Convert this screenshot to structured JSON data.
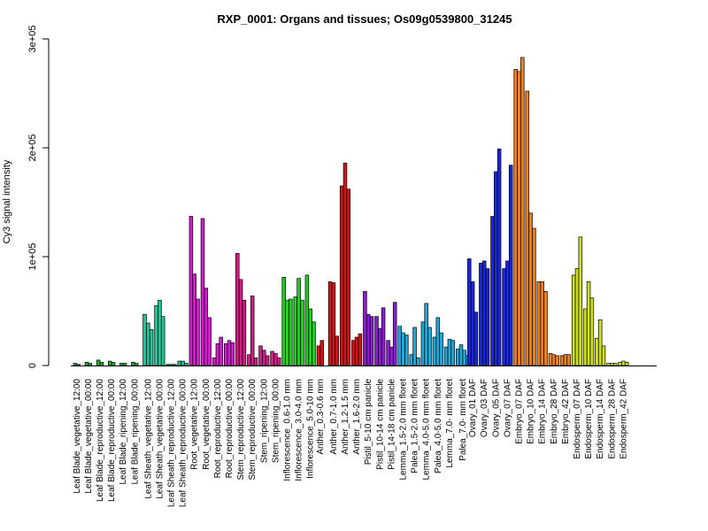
{
  "chart_data": {
    "type": "bar",
    "title": "RXP_0001: Organs and tissues; Os09g0539800_31245",
    "xlabel": "",
    "ylabel": "Cy3 signal intensity",
    "ylim": [
      0,
      300000
    ],
    "yticks": [
      0,
      100000,
      200000,
      300000
    ],
    "ytick_labels": [
      "0",
      "1e+05",
      "2e+05",
      "3e+05"
    ],
    "grid": false,
    "legend": "none",
    "x_labels": [
      "Leaf Blade_vegetative_12:00",
      "Leaf Blade_vegetative_00:00",
      "Leaf Blade_reproductive_12:00",
      "Leaf Blade_reproductive_00:00",
      "Leaf Blade_ripening_12:00",
      "Leaf Blade_ripening_00:00",
      "Leaf Sheath_vegetative_12:00",
      "Leaf Sheath_vegetative_00:00",
      "Leaf Sheath_reproductive_12:00",
      "Leaf Sheath_reproductive_00:00",
      "Root_vegetative_12:00",
      "Root_vegetative_00:00",
      "Root_reproductive_12:00",
      "Root_reproductive_00:00",
      "Stem_reproductive_12:00",
      "Stem_reproductive_00:00",
      "Stem_ripening_12:00",
      "Stem_ripening_00:00",
      "Inflorescence_0.6-1.0 mm",
      "Inflorescence_3.0-4.0 mm",
      "Inflorescence_5.0-10 mm",
      "Anther_0.3-0.6 mm",
      "Anther_0.7-1.0 mm",
      "Anther_1.2-1.5 mm",
      "Anther_1.6-2.0 mm",
      "Pistil_5-10 cm panicle",
      "Pistil_10-14 cm panicle",
      "Pistil_14-18 cm panicle",
      "Lemma_1.5-2.0 mm floret",
      "Palea_1.5-2.0 mm floret",
      "Lemma_4.0-5.0 mm floret",
      "Palea_4.0-5.0 mm floret",
      "Lemma_7.0- mm floret",
      "Palea_7.0- mm floret",
      "Ovary_01 DAF",
      "Ovary_03 DAF",
      "Ovary_05 DAF",
      "Ovary_07 DAF",
      "Embryo_07 DAF",
      "Embryo_10 DAF",
      "Embryo_14 DAF",
      "Embryo_28 DAF",
      "Embryo_42 DAF",
      "Endosperm_07 DAF",
      "Endosperm_10 DAF",
      "Endosperm_14 DAF",
      "Endosperm_28 DAF",
      "Endosperm_42 DAF"
    ],
    "groups": [
      {
        "color": "#1eb032",
        "values": [
          2000,
          1000
        ]
      },
      {
        "color": "#1eb032",
        "values": [
          3000,
          2000
        ]
      },
      {
        "color": "#1eb032",
        "values": [
          5000,
          3000
        ]
      },
      {
        "color": "#1eb032",
        "values": [
          4000,
          3000
        ]
      },
      {
        "color": "#1eb032",
        "values": [
          2000,
          2000
        ]
      },
      {
        "color": "#1eb032",
        "values": [
          3000,
          2000
        ]
      },
      {
        "color": "#20c496",
        "values": [
          47000,
          39000,
          33000
        ]
      },
      {
        "color": "#20c496",
        "values": [
          55000,
          60000,
          45000
        ]
      },
      {
        "color": "#20c496",
        "values": [
          1000,
          1000,
          1000
        ]
      },
      {
        "color": "#20c496",
        "values": [
          4000,
          4000,
          2000
        ]
      },
      {
        "color": "#d11fcf",
        "values": [
          137000,
          84000,
          61000
        ]
      },
      {
        "color": "#d11fcf",
        "values": [
          135000,
          71000,
          44000
        ]
      },
      {
        "color": "#d11fcf",
        "values": [
          7000,
          20000,
          26000
        ]
      },
      {
        "color": "#d11fcf",
        "values": [
          20000,
          23000,
          21000
        ]
      },
      {
        "color": "#cf1f86",
        "values": [
          103000,
          79000,
          60000
        ]
      },
      {
        "color": "#cf1f86",
        "values": [
          10000,
          64000,
          7000
        ]
      },
      {
        "color": "#cf1f86",
        "values": [
          18000,
          14000,
          9000
        ]
      },
      {
        "color": "#cf1f86",
        "values": [
          13000,
          11000,
          7000
        ]
      },
      {
        "color": "#20d020",
        "values": [
          81000,
          60000,
          61000
        ]
      },
      {
        "color": "#20d020",
        "values": [
          63000,
          80000,
          60000
        ]
      },
      {
        "color": "#20d020",
        "values": [
          83000,
          52000,
          40000
        ]
      },
      {
        "color": "#d01818",
        "values": [
          18000,
          23000
        ]
      },
      {
        "color": "#d01818",
        "values": [
          77000,
          76000,
          27000
        ]
      },
      {
        "color": "#d01818",
        "values": [
          165000,
          186000,
          162000
        ]
      },
      {
        "color": "#d01818",
        "values": [
          23000,
          26000,
          29000
        ]
      },
      {
        "color": "#8b1cd4",
        "values": [
          68000,
          47000,
          45000
        ]
      },
      {
        "color": "#8b1cd4",
        "values": [
          45000,
          34000,
          53000
        ]
      },
      {
        "color": "#8b1cd4",
        "values": [
          23000,
          17000,
          58000
        ]
      },
      {
        "color": "#20a8d8",
        "values": [
          36000,
          30000,
          28000
        ]
      },
      {
        "color": "#20a8d8",
        "values": [
          10000,
          35000,
          7000
        ]
      },
      {
        "color": "#20a8d8",
        "values": [
          40000,
          57000,
          35000
        ]
      },
      {
        "color": "#20a8d8",
        "values": [
          26000,
          44000,
          30000
        ]
      },
      {
        "color": "#20a8d8",
        "values": [
          17000,
          24000,
          23000
        ]
      },
      {
        "color": "#20a8d8",
        "values": [
          15000,
          19000,
          14000,
          9000
        ]
      },
      {
        "color": "#1a28d8",
        "values": [
          98000,
          77000,
          49000
        ]
      },
      {
        "color": "#1a28d8",
        "values": [
          94000,
          96000,
          89000
        ]
      },
      {
        "color": "#1a28d8",
        "values": [
          137000,
          178000,
          199000
        ]
      },
      {
        "color": "#1a28d8",
        "values": [
          89000,
          96000,
          184000
        ]
      },
      {
        "color": "#ef8020",
        "values": [
          272000,
          270000,
          283000
        ]
      },
      {
        "color": "#ef8020",
        "values": [
          252000,
          140000,
          126000
        ]
      },
      {
        "color": "#ef8020",
        "values": [
          77000,
          77000,
          68000
        ]
      },
      {
        "color": "#ef8020",
        "values": [
          11000,
          10000,
          9000
        ]
      },
      {
        "color": "#ef8020",
        "values": [
          9000,
          10000,
          10000
        ]
      },
      {
        "color": "#cfe020",
        "values": [
          83000,
          89000,
          118000
        ]
      },
      {
        "color": "#cfe020",
        "values": [
          52000,
          77000,
          62000
        ]
      },
      {
        "color": "#cfe020",
        "values": [
          25000,
          42000,
          18000
        ]
      },
      {
        "color": "#cfe020",
        "values": [
          2000,
          2000,
          2000
        ]
      },
      {
        "color": "#cfe020",
        "values": [
          3000,
          4000,
          3000
        ]
      }
    ]
  }
}
